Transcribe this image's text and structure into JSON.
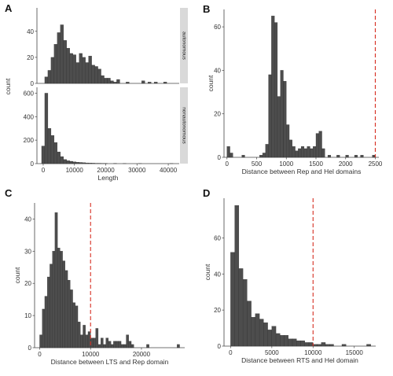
{
  "chart_data": [
    {
      "panel": "A",
      "type": "bar",
      "facets": [
        "autonomous",
        "nonautonomous"
      ],
      "xlabel": "Length",
      "ylabel": "count",
      "xlim": [
        -2000,
        43500
      ],
      "xticks": [
        0,
        10000,
        20000,
        30000,
        40000
      ],
      "tick_labels": [
        "0",
        "10000",
        "20000",
        "30000",
        "40000"
      ],
      "bin_width": 1000,
      "series": [
        {
          "name": "autonomous",
          "ylim": [
            0,
            58
          ],
          "yticks": [
            0,
            20,
            40
          ],
          "x": [
            1000,
            2000,
            3000,
            4000,
            5000,
            6000,
            7000,
            8000,
            9000,
            10000,
            11000,
            12000,
            13000,
            14000,
            15000,
            16000,
            17000,
            18000,
            19000,
            20000,
            21000,
            22000,
            23000,
            24000,
            27000,
            32000,
            34000,
            36000,
            39000
          ],
          "values": [
            5,
            10,
            20,
            30,
            39,
            45,
            33,
            27,
            23,
            22,
            16,
            23,
            20,
            16,
            21,
            14,
            13,
            11,
            6,
            4,
            4,
            2,
            1,
            3,
            1,
            2,
            1,
            1,
            1
          ]
        },
        {
          "name": "nonautonomous",
          "ylim": [
            0,
            650
          ],
          "yticks": [
            0,
            200,
            400,
            600
          ],
          "x": [
            0,
            1000,
            2000,
            3000,
            4000,
            5000,
            6000,
            7000,
            8000,
            9000,
            10000,
            11000,
            12000,
            13000,
            14000,
            15000,
            16000,
            17000,
            18000,
            19000,
            20000,
            23000,
            26000,
            31000,
            41000
          ],
          "values": [
            150,
            600,
            300,
            240,
            180,
            100,
            60,
            35,
            25,
            20,
            15,
            12,
            10,
            8,
            6,
            5,
            4,
            3,
            3,
            2,
            2,
            2,
            1,
            1,
            1
          ]
        }
      ]
    },
    {
      "panel": "B",
      "type": "bar",
      "xlabel": "Distance between Rep and Hel domains",
      "ylabel": "count",
      "xlim": [
        -50,
        2560
      ],
      "ylim": [
        0,
        68
      ],
      "xticks": [
        0,
        500,
        1000,
        1500,
        2000,
        2500
      ],
      "yticks": [
        0,
        20,
        40,
        60
      ],
      "bin_width": 50,
      "reference_line": 2500,
      "x": [
        25,
        75,
        275,
        575,
        625,
        675,
        725,
        775,
        825,
        875,
        925,
        975,
        1025,
        1075,
        1125,
        1175,
        1225,
        1275,
        1325,
        1375,
        1425,
        1475,
        1525,
        1575,
        1625,
        1725,
        1875,
        2025,
        2175,
        2275,
        2475
      ],
      "values": [
        5,
        2,
        1,
        1,
        2,
        6,
        38,
        65,
        62,
        28,
        40,
        35,
        15,
        8,
        5,
        3,
        4,
        5,
        4,
        5,
        4,
        5,
        11,
        12,
        4,
        1,
        1,
        1,
        1,
        1,
        1
      ]
    },
    {
      "panel": "C",
      "type": "bar",
      "xlabel": "Distance between LTS and Rep domain",
      "ylabel": "count",
      "xlim": [
        -1000,
        28500
      ],
      "ylim": [
        0,
        45
      ],
      "xticks": [
        0,
        10000,
        20000
      ],
      "yticks": [
        0,
        10,
        20,
        30,
        40
      ],
      "bin_width": 500,
      "reference_line": 10000,
      "x": [
        250,
        750,
        1250,
        1750,
        2250,
        2750,
        3250,
        3750,
        4250,
        4750,
        5250,
        5750,
        6250,
        6750,
        7250,
        7750,
        8250,
        8750,
        9250,
        9750,
        10250,
        10750,
        11250,
        11750,
        12250,
        12750,
        13250,
        13750,
        14250,
        14750,
        15250,
        15750,
        16250,
        16750,
        17250,
        17750,
        18250,
        21250,
        27250
      ],
      "values": [
        4,
        12,
        16,
        22,
        26,
        30,
        42,
        31,
        30,
        27,
        24,
        21,
        18,
        14,
        13,
        8,
        4,
        7,
        4,
        5,
        3,
        3,
        6,
        1,
        3,
        1,
        3,
        2,
        1,
        2,
        2,
        2,
        1,
        1,
        4,
        2,
        1,
        1,
        1
      ]
    },
    {
      "panel": "D",
      "type": "bar",
      "xlabel": "Distance between RTS and Hel domain",
      "ylabel": "count",
      "xlim": [
        -800,
        17600
      ],
      "ylim": [
        0,
        82
      ],
      "xticks": [
        0,
        5000,
        10000,
        15000
      ],
      "yticks": [
        0,
        20,
        40,
        60
      ],
      "bin_width": 500,
      "reference_line": 10000,
      "x": [
        250,
        750,
        1250,
        1750,
        2250,
        2750,
        3250,
        3750,
        4250,
        4750,
        5250,
        5750,
        6250,
        6750,
        7250,
        7750,
        8250,
        8750,
        9250,
        9750,
        10250,
        10750,
        11250,
        11750,
        12250,
        13750,
        16750
      ],
      "values": [
        52,
        78,
        43,
        37,
        25,
        16,
        18,
        15,
        13,
        9,
        11,
        7,
        6,
        6,
        4,
        4,
        3,
        3,
        2,
        2,
        1,
        1,
        2,
        1,
        1,
        1,
        1
      ]
    }
  ]
}
